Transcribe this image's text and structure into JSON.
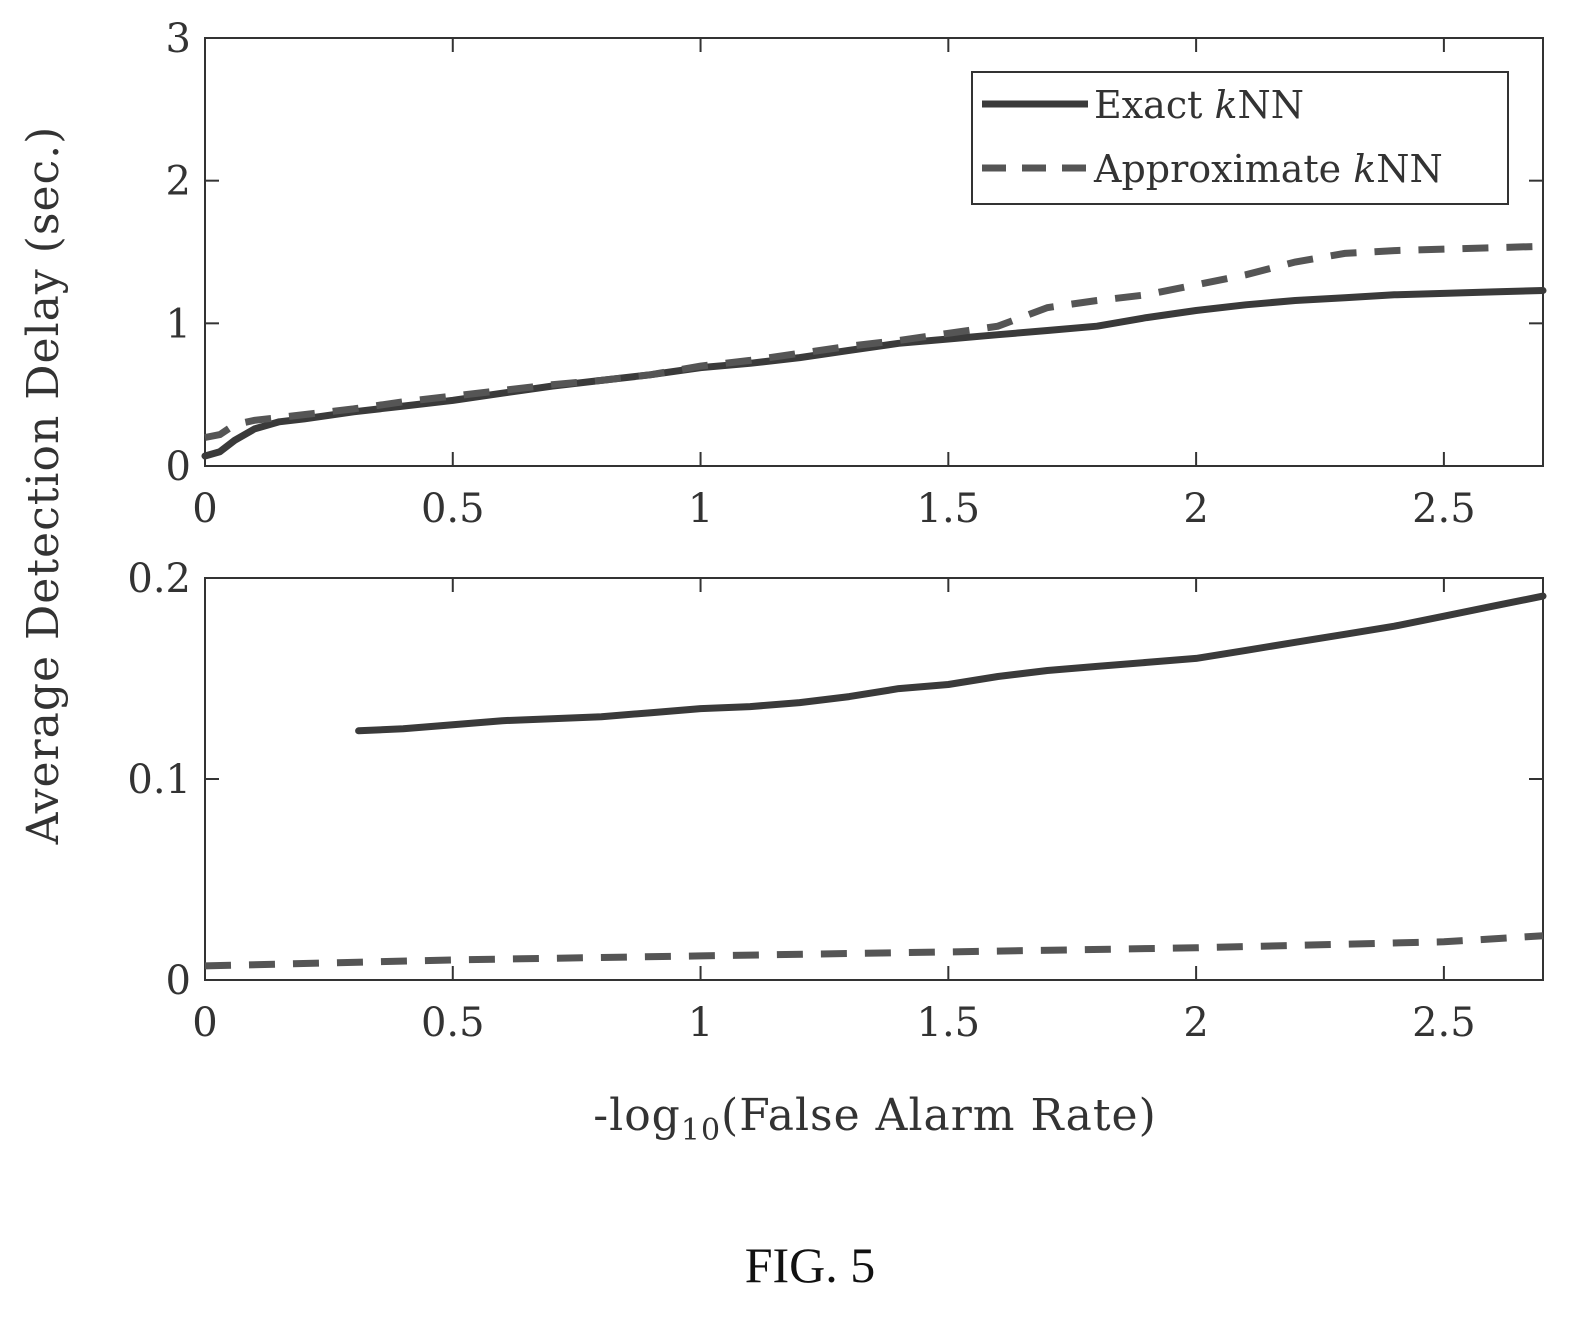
{
  "figure": {
    "caption": "FIG. 5",
    "ylabel": "Average Detection Delay (sec.)",
    "xlabel_prefix": "-log",
    "xlabel_sub": "10",
    "xlabel_suffix": "(False Alarm Rate)"
  },
  "colors": {
    "exact": "#3a3a3a",
    "approx": "#555555",
    "axis": "#333333"
  },
  "chart_data": [
    {
      "type": "line",
      "xlim": [
        0,
        2.7
      ],
      "ylim": [
        0,
        3
      ],
      "x_ticks": [
        {
          "v": 0,
          "label": "0"
        },
        {
          "v": 0.5,
          "label": "0.5"
        },
        {
          "v": 1,
          "label": "1"
        },
        {
          "v": 1.5,
          "label": "1.5"
        },
        {
          "v": 2,
          "label": "2"
        },
        {
          "v": 2.5,
          "label": "2.5"
        }
      ],
      "y_ticks": [
        {
          "v": 0,
          "label": "0"
        },
        {
          "v": 1,
          "label": "1"
        },
        {
          "v": 2,
          "label": "2"
        },
        {
          "v": 3,
          "label": "3"
        }
      ],
      "grid": false,
      "legend": "top-right",
      "legend_entries": [
        {
          "prefix": "Exact ",
          "k": "k",
          "suffix": "NN",
          "style": "solid"
        },
        {
          "prefix": "Approximate ",
          "k": "k",
          "suffix": "NN",
          "style": "dashed"
        }
      ],
      "series": [
        {
          "name": "Exact kNN",
          "style": "solid",
          "x": [
            0,
            0.03,
            0.06,
            0.1,
            0.15,
            0.2,
            0.3,
            0.4,
            0.5,
            0.6,
            0.7,
            0.8,
            0.9,
            1.0,
            1.1,
            1.2,
            1.3,
            1.4,
            1.5,
            1.6,
            1.7,
            1.8,
            1.9,
            2.0,
            2.1,
            2.2,
            2.3,
            2.4,
            2.5,
            2.6,
            2.7
          ],
          "y": [
            0.07,
            0.1,
            0.18,
            0.26,
            0.31,
            0.33,
            0.38,
            0.42,
            0.46,
            0.51,
            0.56,
            0.6,
            0.64,
            0.69,
            0.72,
            0.76,
            0.81,
            0.86,
            0.89,
            0.92,
            0.95,
            0.98,
            1.04,
            1.09,
            1.13,
            1.16,
            1.18,
            1.2,
            1.21,
            1.22,
            1.23
          ]
        },
        {
          "name": "Approximate kNN",
          "style": "dashed",
          "x": [
            0,
            0.03,
            0.06,
            0.1,
            0.15,
            0.2,
            0.3,
            0.4,
            0.5,
            0.6,
            0.7,
            0.8,
            0.9,
            1.0,
            1.1,
            1.2,
            1.3,
            1.4,
            1.5,
            1.6,
            1.7,
            1.8,
            1.9,
            2.0,
            2.1,
            2.2,
            2.3,
            2.4,
            2.5,
            2.6,
            2.7
          ],
          "y": [
            0.2,
            0.22,
            0.29,
            0.32,
            0.34,
            0.36,
            0.4,
            0.45,
            0.49,
            0.53,
            0.57,
            0.6,
            0.64,
            0.7,
            0.74,
            0.79,
            0.84,
            0.88,
            0.93,
            0.98,
            1.11,
            1.16,
            1.2,
            1.27,
            1.34,
            1.43,
            1.49,
            1.51,
            1.52,
            1.53,
            1.54
          ]
        }
      ]
    },
    {
      "type": "line",
      "xlim": [
        0,
        2.7
      ],
      "ylim": [
        0,
        0.2
      ],
      "x_ticks": [
        {
          "v": 0,
          "label": "0"
        },
        {
          "v": 0.5,
          "label": "0.5"
        },
        {
          "v": 1,
          "label": "1"
        },
        {
          "v": 1.5,
          "label": "1.5"
        },
        {
          "v": 2,
          "label": "2"
        },
        {
          "v": 2.5,
          "label": "2.5"
        }
      ],
      "y_ticks": [
        {
          "v": 0,
          "label": "0"
        },
        {
          "v": 0.1,
          "label": "0.1"
        },
        {
          "v": 0.2,
          "label": "0.2"
        }
      ],
      "grid": false,
      "series": [
        {
          "name": "Exact kNN",
          "style": "solid",
          "x": [
            0.31,
            0.4,
            0.5,
            0.6,
            0.7,
            0.8,
            0.9,
            1.0,
            1.1,
            1.2,
            1.3,
            1.4,
            1.5,
            1.6,
            1.7,
            1.8,
            1.9,
            2.0,
            2.1,
            2.2,
            2.3,
            2.4,
            2.5,
            2.6,
            2.7
          ],
          "y": [
            0.124,
            0.125,
            0.127,
            0.129,
            0.13,
            0.131,
            0.133,
            0.135,
            0.136,
            0.138,
            0.141,
            0.145,
            0.147,
            0.151,
            0.154,
            0.156,
            0.158,
            0.16,
            0.164,
            0.168,
            0.172,
            0.176,
            0.181,
            0.186,
            0.191
          ]
        },
        {
          "name": "Approximate kNN",
          "style": "dashed",
          "x": [
            0,
            0.5,
            1.0,
            1.5,
            2.0,
            2.5,
            2.7
          ],
          "y": [
            0.007,
            0.01,
            0.012,
            0.014,
            0.016,
            0.019,
            0.022
          ]
        }
      ]
    }
  ]
}
